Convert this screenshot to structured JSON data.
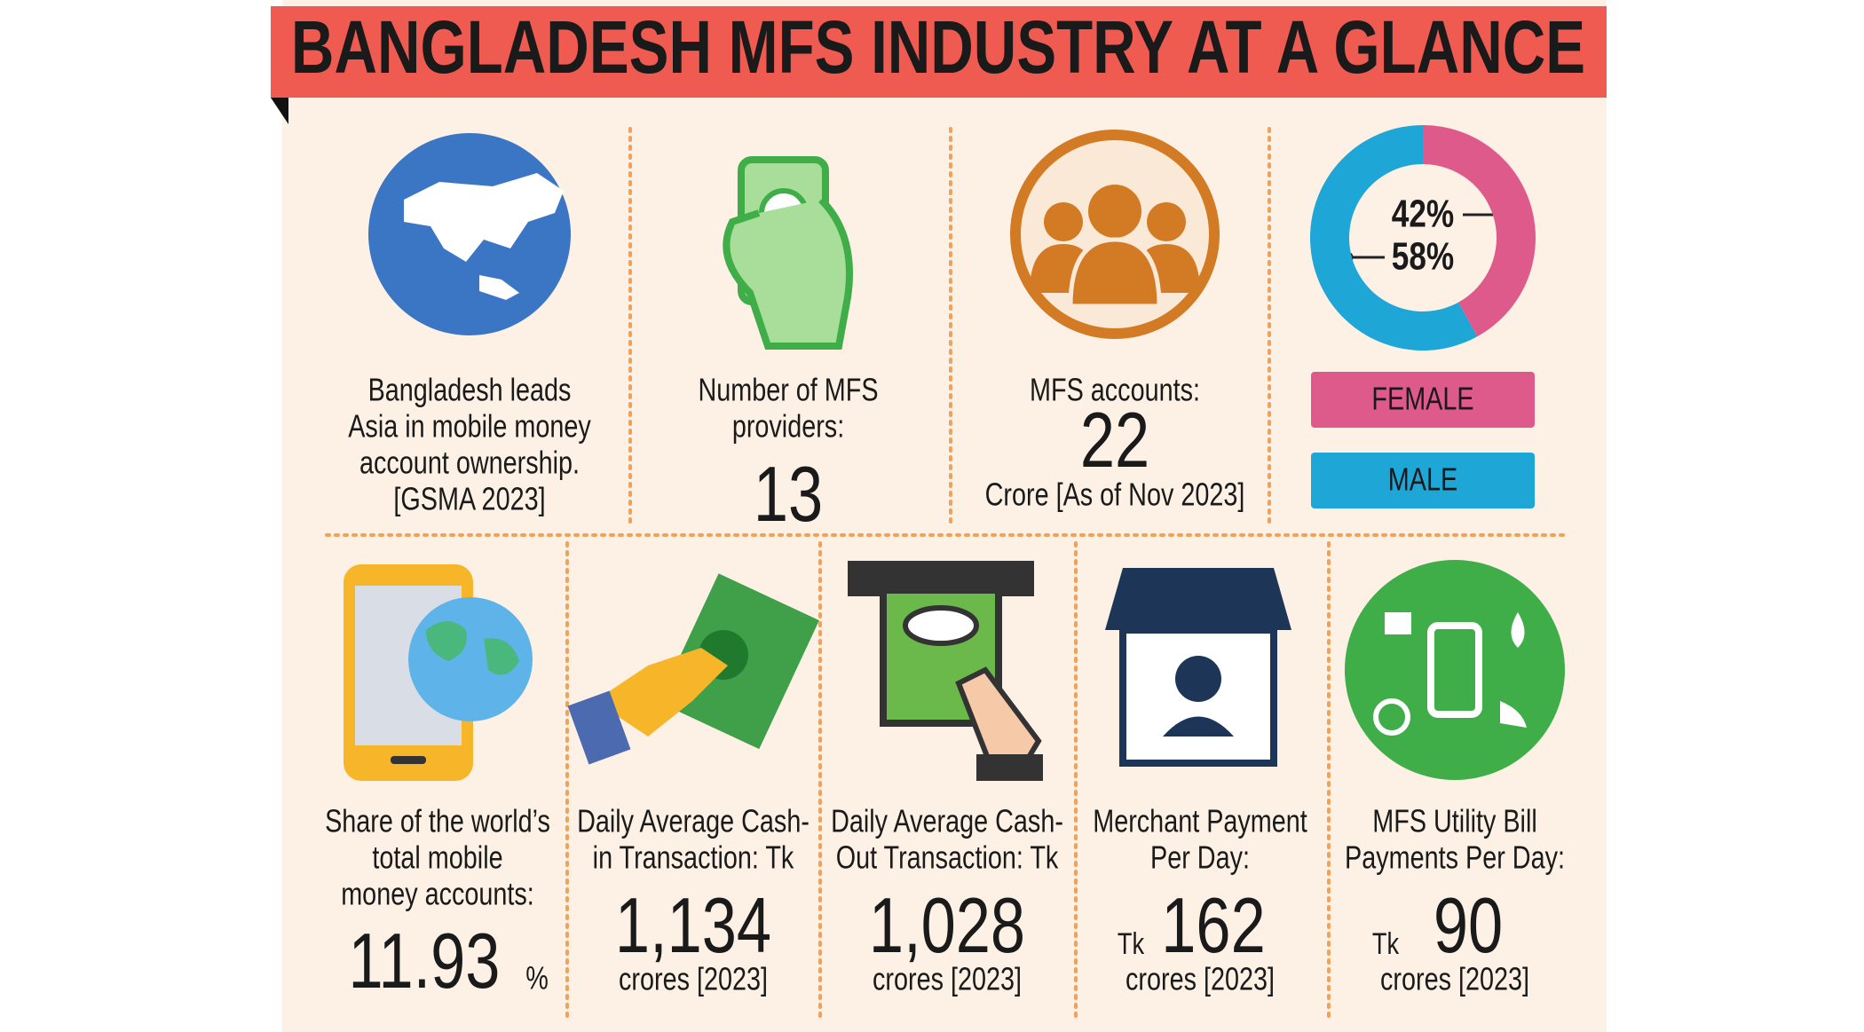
{
  "header": {
    "title": "BANGLADESH MFS INDUSTRY AT A GLANCE"
  },
  "top": [
    {
      "lines": [
        "Bangladesh leads",
        "Asia in mobile money",
        "account ownership.",
        "[GSMA 2023]"
      ]
    },
    {
      "lines": [
        "Number of MFS",
        "providers:"
      ],
      "figure": "13"
    },
    {
      "lines": [
        "MFS accounts:"
      ],
      "figure": "22",
      "note": "Crore [As of Nov 2023]"
    }
  ],
  "gender": {
    "values": [
      42,
      58
    ],
    "value_labels": [
      "42%",
      "58%"
    ],
    "labels": [
      "FEMALE",
      "MALE"
    ],
    "colors": [
      "#de5a8a",
      "#1ea6d6"
    ]
  },
  "bottom": [
    {
      "lines": [
        "Share of the world’s",
        "total mobile",
        "money accounts:"
      ],
      "figure": "11.93",
      "unit": "%"
    },
    {
      "lines": [
        "Daily Average Cash-",
        "in Transaction: Tk"
      ],
      "figure": "1,134",
      "note": "crores [2023]"
    },
    {
      "lines": [
        "Daily Average Cash-",
        "Out Transaction: Tk"
      ],
      "figure": "1,028",
      "note": "crores [2023]"
    },
    {
      "lines": [
        "Merchant Payment",
        "Per Day:"
      ],
      "prefix": "Tk",
      "figure": "162",
      "note": "crores [2023]"
    },
    {
      "lines": [
        "MFS Utility Bill",
        "Payments Per Day:"
      ],
      "prefix": "Tk",
      "figure": "90",
      "note": "crores [2023]"
    }
  ]
}
